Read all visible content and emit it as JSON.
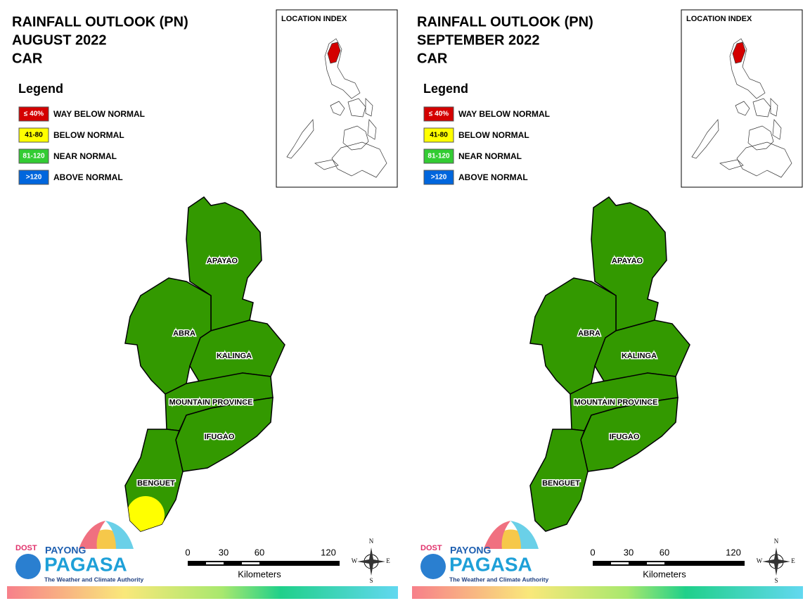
{
  "panels": [
    {
      "title": [
        "RAINFALL OUTLOOK (PN)",
        "AUGUST 2022",
        "CAR"
      ],
      "legend_title": "Legend",
      "legend": [
        {
          "code": "≤ 40%",
          "label": "WAY BELOW NORMAL",
          "color": "#d40000"
        },
        {
          "code": "41-80",
          "label": "BELOW NORMAL",
          "color": "#ffff00"
        },
        {
          "code": "81-120",
          "label": "NEAR NORMAL",
          "color": "#33cc33"
        },
        {
          "code": ">120",
          "label": "ABOVE NORMAL",
          "color": "#0066dd"
        }
      ],
      "index_title": "LOCATION INDEX",
      "provinces": [
        {
          "name": "APAYAO",
          "color": "#339900"
        },
        {
          "name": "ABRA",
          "color": "#339900"
        },
        {
          "name": "KALINGA",
          "color": "#339900"
        },
        {
          "name": "MOUNTAIN PROVINCE",
          "color": "#339900"
        },
        {
          "name": "IFUGAO",
          "color": "#339900"
        },
        {
          "name": "BENGUET",
          "color": "#339900",
          "partial_color": "#ffff00"
        }
      ],
      "scale": {
        "ticks": [
          "0",
          "30",
          "60",
          "120"
        ],
        "unit": "Kilometers"
      },
      "compass": [
        "N",
        "E",
        "S",
        "W"
      ],
      "logo": {
        "agency": "DOST",
        "top": "PAYONG",
        "main": "PAGASA",
        "tagline": "The Weather and Climate Authority"
      }
    },
    {
      "title": [
        "RAINFALL OUTLOOK (PN)",
        "SEPTEMBER 2022",
        "CAR"
      ],
      "legend_title": "Legend",
      "legend": [
        {
          "code": "≤ 40%",
          "label": "WAY BELOW NORMAL",
          "color": "#d40000"
        },
        {
          "code": "41-80",
          "label": "BELOW NORMAL",
          "color": "#ffff00"
        },
        {
          "code": "81-120",
          "label": "NEAR NORMAL",
          "color": "#33cc33"
        },
        {
          "code": ">120",
          "label": "ABOVE NORMAL",
          "color": "#0066dd"
        }
      ],
      "index_title": "LOCATION INDEX",
      "provinces": [
        {
          "name": "APAYAO",
          "color": "#339900"
        },
        {
          "name": "ABRA",
          "color": "#339900"
        },
        {
          "name": "KALINGA",
          "color": "#339900"
        },
        {
          "name": "MOUNTAIN PROVINCE",
          "color": "#339900"
        },
        {
          "name": "IFUGAO",
          "color": "#339900"
        },
        {
          "name": "BENGUET",
          "color": "#339900"
        }
      ],
      "scale": {
        "ticks": [
          "0",
          "30",
          "60",
          "120"
        ],
        "unit": "Kilometers"
      },
      "compass": [
        "N",
        "E",
        "S",
        "W"
      ],
      "logo": {
        "agency": "DOST",
        "top": "PAYONG",
        "main": "PAGASA",
        "tagline": "The Weather and Climate Authority"
      }
    }
  ]
}
